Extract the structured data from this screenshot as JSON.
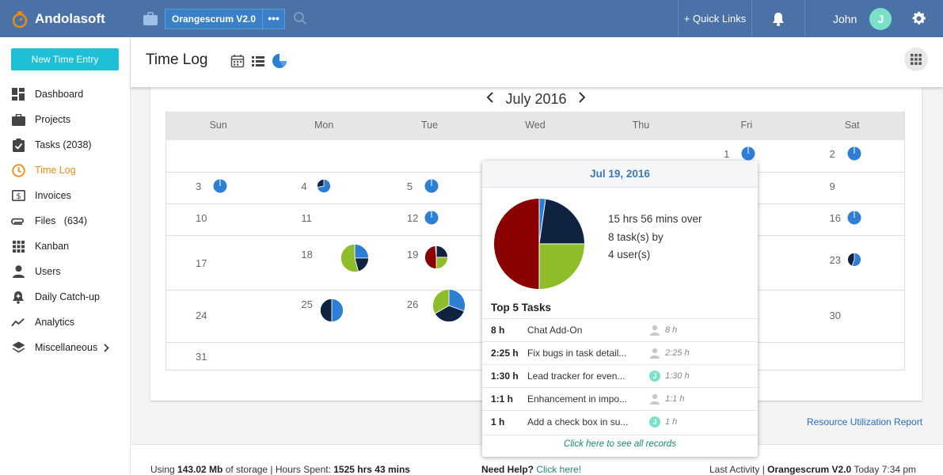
{
  "brand": {
    "name": "Andolasoft"
  },
  "header": {
    "project": "Orangescrum V2.0",
    "project_more": "•••",
    "quick_links": "+ Quick Links",
    "user_name": "John",
    "user_initial": "J"
  },
  "sidebar": {
    "new_entry": "New Time Entry",
    "items": [
      {
        "label": "Dashboard",
        "icon": "dashboard-icon"
      },
      {
        "label": "Projects",
        "icon": "briefcase-icon"
      },
      {
        "label": "Tasks (2038)",
        "icon": "clipboard-check-icon"
      },
      {
        "label": "Time Log",
        "icon": "clock-icon",
        "active": true
      },
      {
        "label": "Invoices",
        "icon": "dollar-icon"
      },
      {
        "label": "Files   (634)",
        "icon": "paperclip-icon"
      },
      {
        "label": "Kanban",
        "icon": "grid-icon"
      },
      {
        "label": "Users",
        "icon": "user-icon"
      },
      {
        "label": "Daily Catch-up",
        "icon": "user-plus-icon"
      },
      {
        "label": "Analytics",
        "icon": "trend-icon"
      },
      {
        "label": "Miscellaneous",
        "icon": "layers-icon"
      }
    ]
  },
  "page": {
    "title": "Time Log"
  },
  "calendar": {
    "month": "July 2016",
    "days": [
      "Sun",
      "Mon",
      "Tue",
      "Wed",
      "Thu",
      "Fri",
      "Sat"
    ],
    "weeks": [
      {
        "cells": [
          {
            "d": ""
          },
          {
            "d": ""
          },
          {
            "d": ""
          },
          {
            "d": ""
          },
          {
            "d": ""
          },
          {
            "d": "1",
            "pie": "s"
          },
          {
            "d": "2",
            "pie": "s"
          }
        ]
      },
      {
        "cells": [
          {
            "d": "3",
            "pie": "s"
          },
          {
            "d": "4",
            "pie": "m4"
          },
          {
            "d": "5",
            "pie": "s"
          },
          {
            "d": ""
          },
          {
            "d": ""
          },
          {
            "d": ""
          },
          {
            "d": "9"
          }
        ]
      },
      {
        "cells": [
          {
            "d": "10"
          },
          {
            "d": "11"
          },
          {
            "d": "12",
            "pie": "s"
          },
          {
            "d": ""
          },
          {
            "d": ""
          },
          {
            "d": ""
          },
          {
            "d": "16",
            "pie": "s"
          }
        ]
      },
      {
        "cells": [
          {
            "d": "17"
          },
          {
            "d": "18",
            "pie": "p18"
          },
          {
            "d": "19",
            "pie": "p19"
          },
          {
            "d": ""
          },
          {
            "d": ""
          },
          {
            "d": ""
          },
          {
            "d": "23",
            "pie": "m23"
          }
        ]
      },
      {
        "cells": [
          {
            "d": "24"
          },
          {
            "d": "25",
            "pie": "p25"
          },
          {
            "d": "26",
            "pie": "p26"
          },
          {
            "d": ""
          },
          {
            "d": ""
          },
          {
            "d": ""
          },
          {
            "d": "30"
          }
        ]
      },
      {
        "cells": [
          {
            "d": "31"
          },
          {
            "d": ""
          },
          {
            "d": ""
          },
          {
            "d": ""
          },
          {
            "d": ""
          },
          {
            "d": ""
          },
          {
            "d": ""
          }
        ]
      }
    ]
  },
  "popup": {
    "date": "Jul 19, 2016",
    "summary_line1": "15 hrs 56 mins over",
    "summary_line2": "8 task(s) by",
    "summary_line3": "4 user(s)",
    "top_title": "Top 5 Tasks",
    "tasks": [
      {
        "hours": "8 h",
        "name": "Chat Add-On",
        "user": "",
        "time": "8 h"
      },
      {
        "hours": "2:25 h",
        "name": "Fix bugs in task detail...",
        "user": "",
        "time": "2:25 h"
      },
      {
        "hours": "1:30 h",
        "name": "Lead tracker for even...",
        "user": "J",
        "time": "1:30 h"
      },
      {
        "hours": "1:1 h",
        "name": "Enhancement in impo...",
        "user": "",
        "time": "1:1 h"
      },
      {
        "hours": "1 h",
        "name": "Add a check box in su...",
        "user": "J",
        "time": "1 h"
      }
    ],
    "see_all": "Click here to see all records"
  },
  "links": {
    "resource_report": "Resource Utilization Report"
  },
  "footer": {
    "storage_pre": "Using ",
    "storage_val": "143.02 Mb",
    "storage_post": " of storage | Hours Spent: ",
    "hours_val": "1525 hrs 43 mins",
    "help_label": "Need Help?",
    "help_link": " Click here!",
    "activity_pre": "Last Activity | ",
    "activity_proj": "Orangescrum V2.0",
    "activity_time": " Today 7:34 pm"
  },
  "colors": {
    "header": "#4a72a6",
    "accent": "#f28b0c",
    "cyan": "#1fbfd6",
    "darkred": "#8b0000",
    "navy": "#0f2240",
    "green": "#8fbd2a",
    "blue": "#2d7fd6"
  }
}
